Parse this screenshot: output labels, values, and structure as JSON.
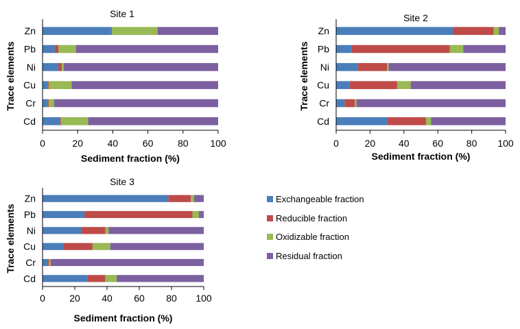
{
  "series": [
    {
      "name": "Exchangeable fraction",
      "color": "#4a7ebb"
    },
    {
      "name": "Reducible fraction",
      "color": "#be4b48"
    },
    {
      "name": "Oxidizable fraction",
      "color": "#98b954"
    },
    {
      "name": "Residual fraction",
      "color": "#7d60a0"
    }
  ],
  "chart_data": [
    {
      "type": "bar",
      "orientation": "horizontal",
      "stacked": true,
      "title": "Site 1",
      "xlabel": "Sediment fraction (%)",
      "ylabel": "Trace elements",
      "xlim": [
        0,
        100
      ],
      "xticks": [
        0,
        20,
        40,
        60,
        80,
        100
      ],
      "categories": [
        "Zn",
        "Pb",
        "Ni",
        "Cu",
        "Cr",
        "Cd"
      ],
      "series": [
        {
          "name": "Exchangeable fraction",
          "values": [
            39,
            7,
            9,
            3,
            3,
            10
          ]
        },
        {
          "name": "Reducible fraction",
          "values": [
            0.5,
            2,
            2,
            0.5,
            0.5,
            0.5
          ]
        },
        {
          "name": "Oxidizable fraction",
          "values": [
            26,
            10,
            1,
            13,
            3,
            15.5
          ]
        },
        {
          "name": "Residual fraction",
          "values": [
            34.5,
            81,
            88,
            83.5,
            93.5,
            74
          ]
        }
      ]
    },
    {
      "type": "bar",
      "orientation": "horizontal",
      "stacked": true,
      "title": "Site 2",
      "xlabel": "Sediment fraction (%)",
      "ylabel": "Trace elements",
      "xlim": [
        0,
        100
      ],
      "xticks": [
        0,
        20,
        40,
        60,
        80,
        100
      ],
      "categories": [
        "Zn",
        "Pb",
        "Ni",
        "Cu",
        "Cr",
        "Cd"
      ],
      "series": [
        {
          "name": "Exchangeable fraction",
          "values": [
            69,
            9,
            13,
            8,
            5,
            30
          ]
        },
        {
          "name": "Reducible fraction",
          "values": [
            24,
            58,
            17,
            28,
            6,
            23
          ]
        },
        {
          "name": "Oxidizable fraction",
          "values": [
            3,
            8,
            1,
            8,
            1,
            3
          ]
        },
        {
          "name": "Residual fraction",
          "values": [
            4,
            25,
            69,
            56,
            88,
            44
          ]
        }
      ]
    },
    {
      "type": "bar",
      "orientation": "horizontal",
      "stacked": true,
      "title": "Site 3",
      "xlabel": "Sediment fraction (%)",
      "ylabel": "Trace elements",
      "xlim": [
        0,
        100
      ],
      "xticks": [
        0,
        20,
        40,
        60,
        80,
        100
      ],
      "categories": [
        "Zn",
        "Pb",
        "Ni",
        "Cu",
        "Cr",
        "Cd"
      ],
      "series": [
        {
          "name": "Exchangeable fraction",
          "values": [
            78,
            26,
            24,
            13,
            3,
            28
          ]
        },
        {
          "name": "Reducible fraction",
          "values": [
            14,
            67,
            15,
            18,
            1,
            11
          ]
        },
        {
          "name": "Oxidizable fraction",
          "values": [
            2,
            4,
            2,
            11,
            1,
            7
          ]
        },
        {
          "name": "Residual fraction",
          "values": [
            6,
            3,
            59,
            58,
            95,
            54
          ]
        }
      ]
    }
  ]
}
